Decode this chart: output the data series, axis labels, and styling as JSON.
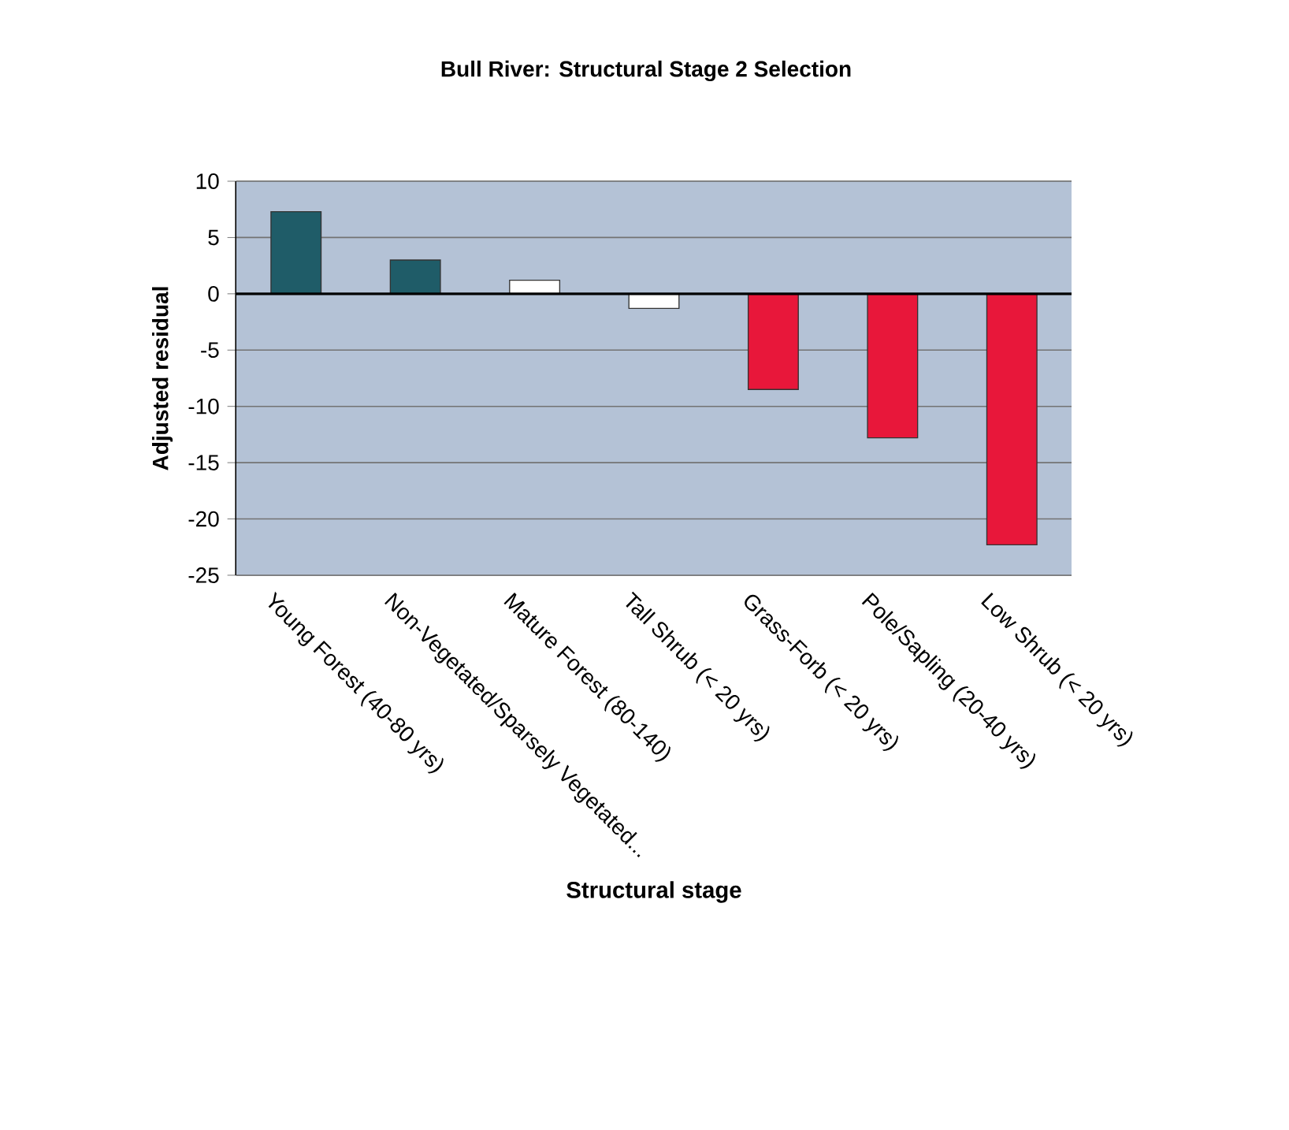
{
  "chart_data": {
    "type": "bar",
    "title": "Bull River: Structural Stage 2 Selection",
    "xlabel": "Structural stage",
    "ylabel": "Adjusted residual",
    "categories": [
      "Young Forest (40-80 yrs)",
      "Non-Vegetated/Sparsely Vegetated...",
      "Mature Forest (80-140)",
      "Tall Shrub (< 20 yrs)",
      "Grass-Forb (< 20 yrs)",
      "Pole/Sapling (20-40 yrs)",
      "Low Shrub (< 20 yrs)"
    ],
    "values": [
      7.3,
      3.0,
      1.2,
      -1.3,
      -8.5,
      -12.8,
      -22.3
    ],
    "colors": [
      "#1f5c68",
      "#1f5c68",
      "#ffffff",
      "#ffffff",
      "#e8173a",
      "#e8173a",
      "#e8173a"
    ],
    "ylim": [
      -25,
      10
    ],
    "yticks": [
      -25,
      -20,
      -15,
      -10,
      -5,
      0,
      5,
      10
    ],
    "grid": "y"
  }
}
